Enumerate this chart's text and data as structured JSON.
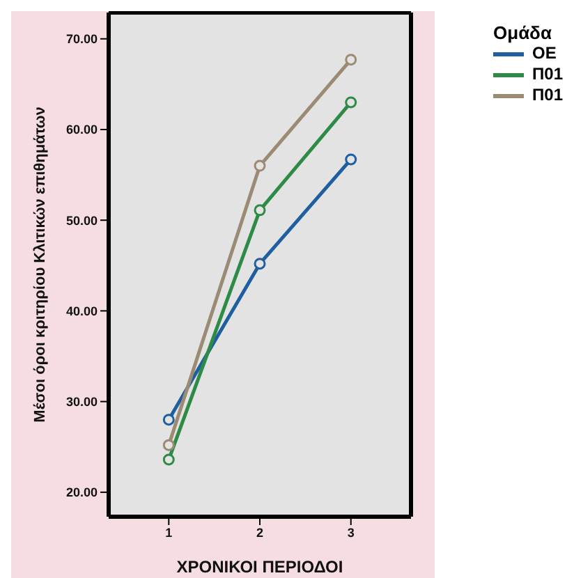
{
  "chart_data": {
    "type": "line",
    "xlabel": "ΧΡΟΝΙΚΟΙ ΠΕΡΙΟΔΟΙ",
    "ylabel": "Μέσοι όροι κριτηρίου Κλιτικών επιθημάτων",
    "legend_title": "Ομάδα",
    "categories": [
      "1",
      "2",
      "3"
    ],
    "series": [
      {
        "name": "ΟΕ",
        "color": "#1f5fa0",
        "values": [
          28.0,
          45.2,
          56.7
        ]
      },
      {
        "name": "Π01",
        "color": "#2e8b47",
        "values": [
          23.6,
          51.1,
          63.0
        ]
      },
      {
        "name": "Π01",
        "color": "#9c8b74",
        "values": [
          25.2,
          56.0,
          67.7
        ]
      }
    ],
    "ylim": [
      17.3,
      72.9
    ],
    "yticks": [
      {
        "value": 20,
        "label": "20.00"
      },
      {
        "value": 30,
        "label": "30.00"
      },
      {
        "value": 40,
        "label": "40.00"
      },
      {
        "value": 50,
        "label": "50.00"
      },
      {
        "value": 60,
        "label": "60.00"
      },
      {
        "value": 70,
        "label": "70.00"
      }
    ],
    "legend": "top right",
    "marker": "circle",
    "line_style": "solid"
  }
}
